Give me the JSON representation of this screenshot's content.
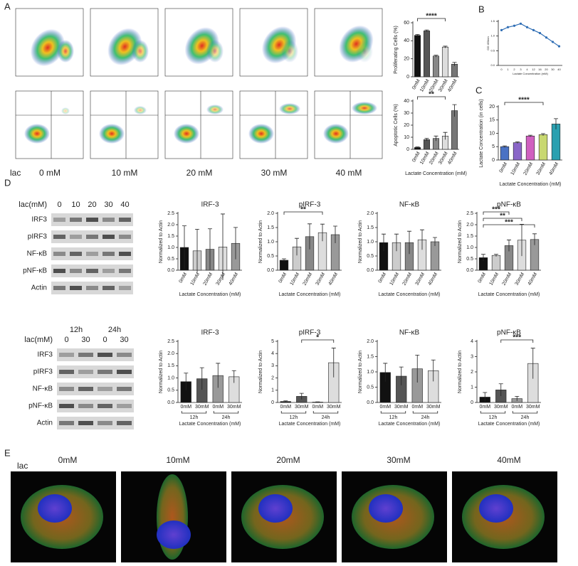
{
  "panels": {
    "a": "A",
    "b": "B",
    "c": "C",
    "d": "D",
    "e": "E"
  },
  "flow": {
    "lac": "lac",
    "concentrations": [
      "0 mM",
      "10 mM",
      "20 mM",
      "30 mM",
      "40 mM"
    ]
  },
  "blots": {
    "top": {
      "header": "lac(mM)",
      "lanes": [
        "0",
        "10",
        "20",
        "30",
        "40"
      ],
      "rows": [
        "IRF3",
        "pIRF3",
        "NF-κB",
        "pNF-κB",
        "Actin"
      ]
    },
    "bottom": {
      "times": [
        "12h",
        "24h"
      ],
      "header": "lac(mM)",
      "lanes": [
        "0",
        "30",
        "0",
        "30"
      ],
      "rows": [
        "IRF3",
        "pIRF3",
        "NF-κB",
        "pNF-κB",
        "Actin"
      ]
    }
  },
  "microscopy": {
    "lac": "lac",
    "concentrations": [
      "0mM",
      "10mM",
      "20mM",
      "30mM",
      "40mM"
    ]
  },
  "chart_data": [
    {
      "type": "bar",
      "ylabel": "Proliferating Cells (%)",
      "categories": [
        "0mM",
        "10mM",
        "20mM",
        "30mM",
        "40mM"
      ],
      "values": [
        46,
        51,
        23,
        33,
        14
      ],
      "errors": [
        1,
        1,
        1,
        1,
        2
      ],
      "colors": [
        "#111111",
        "#555555",
        "#888888",
        "#dddddd",
        "#777777"
      ],
      "ylim": [
        0,
        60
      ],
      "yticks": [
        0,
        20,
        40,
        60
      ],
      "annotations": [
        "****"
      ]
    },
    {
      "type": "bar",
      "ylabel": "Apoptotic Cells (%)",
      "xlabel": "Lactate Concentration (mM)",
      "categories": [
        "0mM",
        "10mM",
        "20mM",
        "30mM",
        "40mM"
      ],
      "values": [
        1.5,
        8,
        9,
        11,
        32
      ],
      "errors": [
        0.5,
        1,
        2,
        3,
        5
      ],
      "colors": [
        "#111111",
        "#555555",
        "#888888",
        "#dddddd",
        "#777777"
      ],
      "ylim": [
        0,
        40
      ],
      "yticks": [
        0,
        10,
        20,
        30,
        40
      ],
      "annotations": [
        "**"
      ]
    },
    {
      "type": "line",
      "ylabel": "OD 450nm",
      "xlabel": "Lactate Concentration (mM)",
      "categories": [
        "0",
        "1",
        "2",
        "3",
        "4",
        "12",
        "16",
        "20",
        "30",
        "40"
      ],
      "values": [
        1.2,
        1.3,
        1.35,
        1.42,
        1.3,
        1.2,
        1.1,
        0.95,
        0.8,
        0.65
      ],
      "color": "#2e6db4",
      "ylim": [
        0,
        1.5
      ],
      "yticks": [
        {
          "value": 0,
          "label": "0.0"
        },
        {
          "value": 0.5,
          "label": "0.5"
        },
        {
          "value": 1,
          "label": "1.0"
        },
        {
          "value": 1.5,
          "label": "1.5"
        }
      ]
    },
    {
      "type": "bar",
      "ylabel": "Lactate Concentration (in cells)",
      "xlabel": "Lactate Concentration (mM)",
      "categories": [
        "0mM",
        "10mM",
        "20mM",
        "30mM",
        "40mM"
      ],
      "values": [
        5,
        6.5,
        9,
        9.5,
        13.5
      ],
      "errors": [
        0.3,
        0.3,
        0.3,
        0.4,
        2
      ],
      "colors": [
        "#4a72c4",
        "#8a66c8",
        "#d060c0",
        "#c8d870",
        "#2aa0b0"
      ],
      "ylim": [
        0,
        20
      ],
      "yticks": [
        0,
        5,
        10,
        15,
        20
      ],
      "annotations": [
        "****"
      ]
    },
    {
      "type": "bar",
      "title": "IRF-3",
      "ylabel": "Normalized to Actin",
      "xlabel": "Lactate Concentration (mM)",
      "categories": [
        "0mM",
        "10mM",
        "20mM",
        "30mM",
        "40mM"
      ],
      "values": [
        1.0,
        0.85,
        0.92,
        1.02,
        1.18
      ],
      "errors": [
        0.95,
        0.95,
        0.9,
        1.45,
        0.7
      ],
      "colors": [
        "#111111",
        "#cccccc",
        "#888888",
        "#dddddd",
        "#999999"
      ],
      "ylim": [
        0,
        2.5
      ],
      "yticks": [
        {
          "value": 0,
          "label": "0.0"
        },
        {
          "value": 0.5,
          "label": "0.5"
        },
        {
          "value": 1,
          "label": "1.0"
        },
        {
          "value": 1.5,
          "label": "1.5"
        },
        {
          "value": 2,
          "label": "2.0"
        },
        {
          "value": 2.5,
          "label": "2.5"
        }
      ]
    },
    {
      "type": "bar",
      "title": "pIRF-3",
      "ylabel": "Normalized to Actin",
      "xlabel": "Lactate Concentration (mM)",
      "categories": [
        "0mM",
        "10mM",
        "20mM",
        "30mM",
        "40mM"
      ],
      "values": [
        0.35,
        0.82,
        1.18,
        1.32,
        1.25
      ],
      "errors": [
        0.05,
        0.3,
        0.45,
        0.3,
        0.3
      ],
      "colors": [
        "#111111",
        "#cccccc",
        "#888888",
        "#dddddd",
        "#999999"
      ],
      "ylim": [
        0,
        2
      ],
      "yticks": [
        {
          "value": 0,
          "label": "0.0"
        },
        {
          "value": 0.5,
          "label": "0.5"
        },
        {
          "value": 1,
          "label": "1.0"
        },
        {
          "value": 1.5,
          "label": "1.5"
        },
        {
          "value": 2,
          "label": "2.0"
        }
      ],
      "annotations": [
        "**"
      ]
    },
    {
      "type": "bar",
      "title": "NF-κB",
      "ylabel": "Normalized to Actin",
      "xlabel": "Lactate Concentration (mM)",
      "categories": [
        "0mM",
        "10mM",
        "20mM",
        "30mM",
        "40mM"
      ],
      "values": [
        0.97,
        0.97,
        0.97,
        1.07,
        1.0
      ],
      "errors": [
        0.3,
        0.3,
        0.4,
        0.35,
        0.15
      ],
      "colors": [
        "#111111",
        "#cccccc",
        "#888888",
        "#dddddd",
        "#999999"
      ],
      "ylim": [
        0,
        2
      ],
      "yticks": [
        {
          "value": 0,
          "label": "0.0"
        },
        {
          "value": 0.5,
          "label": "0.5"
        },
        {
          "value": 1,
          "label": "1.0"
        },
        {
          "value": 1.5,
          "label": "1.5"
        },
        {
          "value": 2,
          "label": "2.0"
        }
      ]
    },
    {
      "type": "bar",
      "title": "pNF-κB",
      "ylabel": "Normalized to Actin",
      "xlabel": "Lactate Concentration (mM)",
      "categories": [
        "0mM",
        "10mM",
        "20mM",
        "30mM",
        "40mM"
      ],
      "values": [
        0.55,
        0.65,
        1.08,
        1.32,
        1.35
      ],
      "errors": [
        0.15,
        0.05,
        0.25,
        0.7,
        0.25
      ],
      "colors": [
        "#111111",
        "#cccccc",
        "#888888",
        "#dddddd",
        "#999999"
      ],
      "ylim": [
        0,
        2.5
      ],
      "yticks": [
        {
          "value": 0,
          "label": "0.0"
        },
        {
          "value": 0.5,
          "label": "0.5"
        },
        {
          "value": 1,
          "label": "1.0"
        },
        {
          "value": 1.5,
          "label": "1.5"
        },
        {
          "value": 2,
          "label": "2.0"
        },
        {
          "value": 2.5,
          "label": "2.5"
        }
      ],
      "annotations": [
        "***",
        "**",
        "***"
      ]
    },
    {
      "type": "bar",
      "title": "IRF-3",
      "ylabel": "Normalized to Actin",
      "xlabel": "Lactate Concentration (mM)",
      "categories": [
        "0mM",
        "30mM",
        "0mM",
        "30mM"
      ],
      "groups": [
        "12h",
        "24h"
      ],
      "values": [
        0.85,
        0.97,
        1.1,
        1.05
      ],
      "errors": [
        0.35,
        0.45,
        0.5,
        0.25
      ],
      "colors": [
        "#111111",
        "#555555",
        "#999999",
        "#dddddd"
      ],
      "ylim": [
        0,
        2.5
      ],
      "yticks": [
        {
          "value": 0,
          "label": "0.0"
        },
        {
          "value": 0.5,
          "label": "0.5"
        },
        {
          "value": 1,
          "label": "1.0"
        },
        {
          "value": 1.5,
          "label": "1.5"
        },
        {
          "value": 2,
          "label": "2.0"
        },
        {
          "value": 2.5,
          "label": "2.5"
        }
      ]
    },
    {
      "type": "bar",
      "title": "pIRF-3",
      "ylabel": "Normalized to Actin",
      "xlabel": "Lactate Concentration (mM)",
      "categories": [
        "0mM",
        "30mM",
        "0mM",
        "30mM"
      ],
      "groups": [
        "12h",
        "24h"
      ],
      "values": [
        0.08,
        0.5,
        0.03,
        3.25
      ],
      "errors": [
        0.05,
        0.25,
        0.02,
        1.2
      ],
      "colors": [
        "#111111",
        "#555555",
        "#999999",
        "#dddddd"
      ],
      "ylim": [
        0,
        5
      ],
      "yticks": [
        0,
        1,
        2,
        3,
        4,
        5
      ],
      "annotations": [
        "*"
      ]
    },
    {
      "type": "bar",
      "title": "NF-κB",
      "ylabel": "Normalized to Actin",
      "xlabel": "Lactate Concentration (mM)",
      "categories": [
        "0mM",
        "30mM",
        "0mM",
        "30mM"
      ],
      "groups": [
        "12h",
        "24h"
      ],
      "values": [
        0.98,
        0.86,
        1.1,
        1.04
      ],
      "errors": [
        0.3,
        0.3,
        0.45,
        0.35
      ],
      "colors": [
        "#111111",
        "#555555",
        "#999999",
        "#dddddd"
      ],
      "ylim": [
        0,
        2
      ],
      "yticks": [
        {
          "value": 0,
          "label": "0.0"
        },
        {
          "value": 0.5,
          "label": "0.5"
        },
        {
          "value": 1,
          "label": "1.0"
        },
        {
          "value": 1.5,
          "label": "1.5"
        },
        {
          "value": 2,
          "label": "2.0"
        }
      ]
    },
    {
      "type": "bar",
      "title": "pNF-κB",
      "ylabel": "Normalized to Actin",
      "xlabel": "Lactate Concentration (mM)",
      "categories": [
        "0mM",
        "30mM",
        "0mM",
        "30mM"
      ],
      "groups": [
        "12h",
        "24h"
      ],
      "values": [
        0.35,
        0.82,
        0.25,
        2.55
      ],
      "errors": [
        0.3,
        0.4,
        0.15,
        1.0
      ],
      "colors": [
        "#111111",
        "#555555",
        "#999999",
        "#dddddd"
      ],
      "ylim": [
        0,
        4
      ],
      "yticks": [
        0,
        1,
        2,
        3,
        4
      ],
      "annotations": [
        "***"
      ]
    }
  ]
}
